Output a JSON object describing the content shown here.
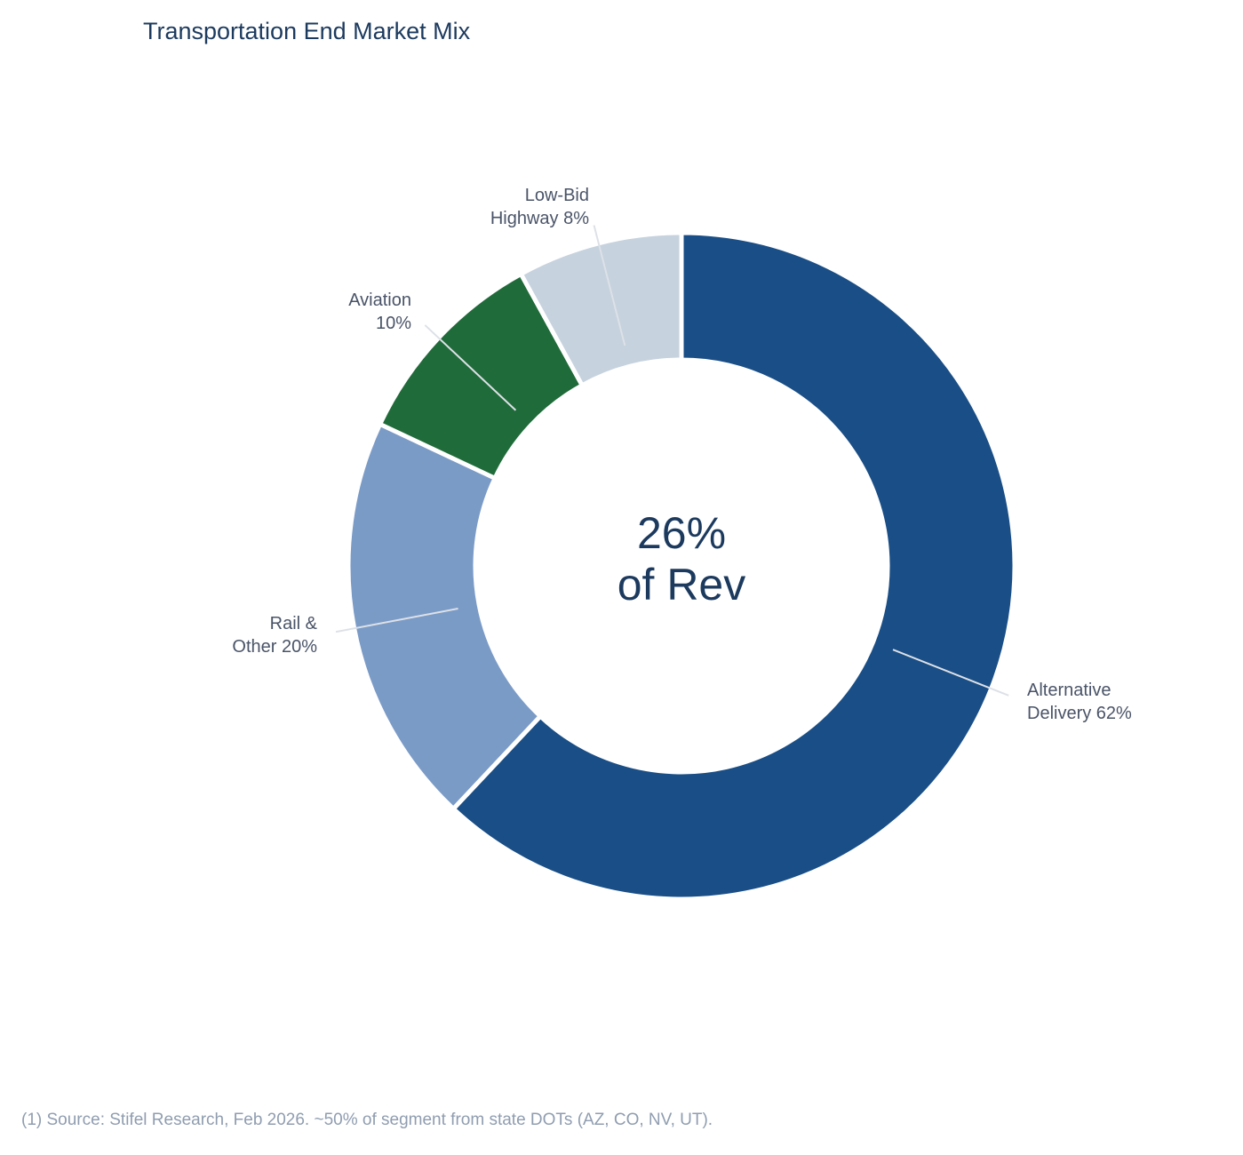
{
  "chart_data": {
    "type": "pie",
    "title": "Transportation End Market Mix",
    "donut": true,
    "center_label": [
      "26%",
      "of Rev"
    ],
    "slices": [
      {
        "label": [
          "Alternative",
          "Delivery 62%"
        ],
        "value": 62,
        "color": "#1a4e86"
      },
      {
        "label": [
          "Rail &",
          "Other 20%"
        ],
        "value": 20,
        "color": "#7b9bc7"
      },
      {
        "label": [
          "Aviation",
          "10%"
        ],
        "value": 10,
        "color": "#206b3a"
      },
      {
        "label": [
          "Low-Bid",
          "Highway 8%"
        ],
        "value": 8,
        "color": "#c6d2de"
      }
    ],
    "start": "top",
    "direction": "clockwise"
  },
  "footnote": "(1) Source: Stifel Research, Feb 2026. ~50% of segment from state DOTs (AZ, CO, NV, UT)."
}
